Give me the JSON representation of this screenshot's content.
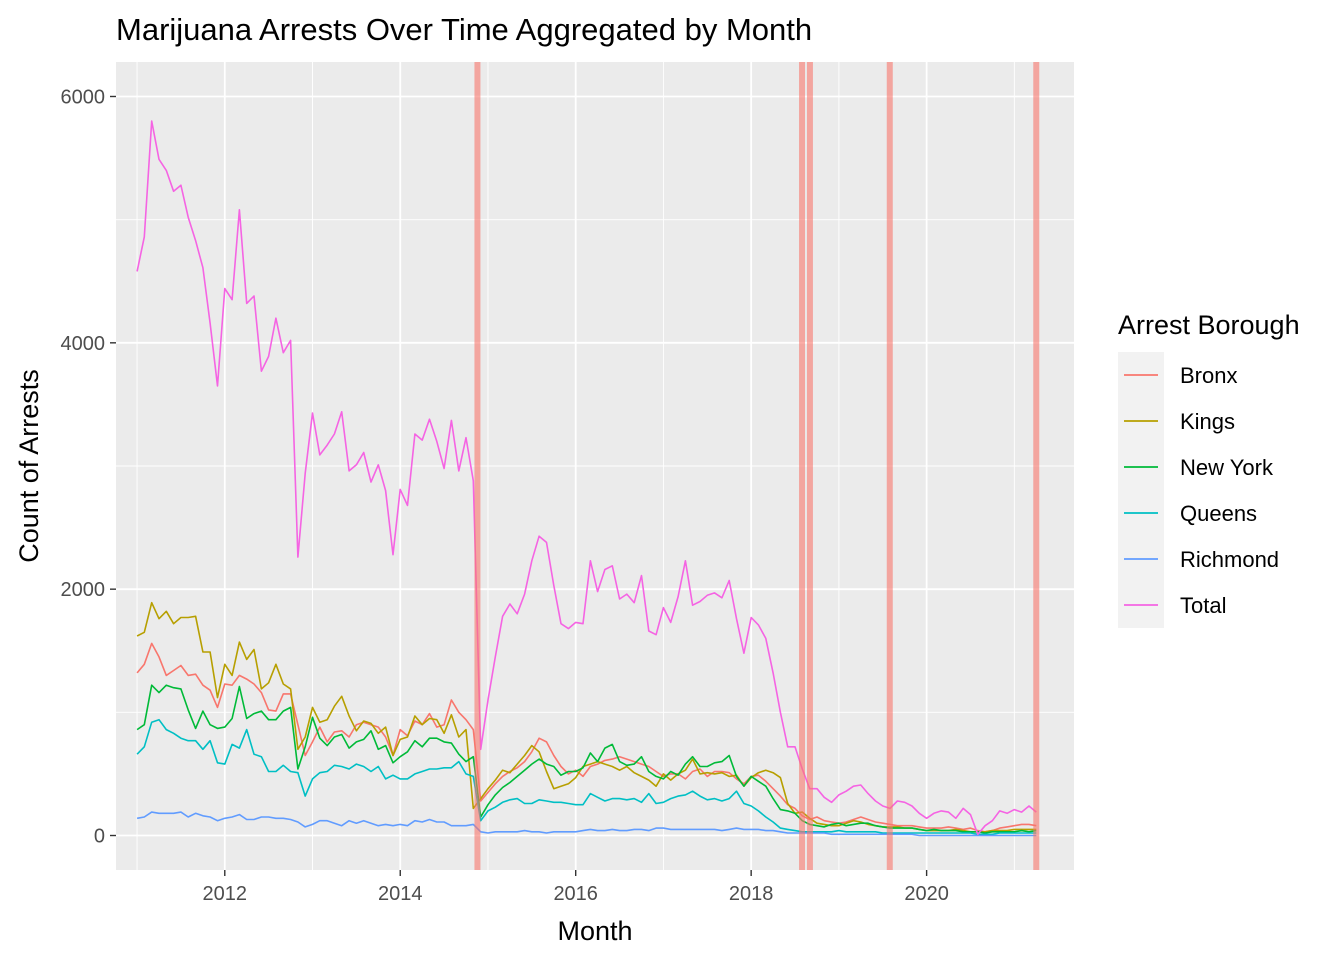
{
  "chart_data": {
    "type": "line",
    "title": "Marijuana Arrests Over Time Aggregated by Month",
    "xlabel": "Month",
    "ylabel": "Count of Arrests",
    "legend_title": "Arrest Borough",
    "legend_position": "right",
    "grid": true,
    "xlim": [
      2010.76,
      2021.68
    ],
    "ylim": [
      -280,
      6280
    ],
    "x_ticks": [
      2012,
      2014,
      2016,
      2018,
      2020
    ],
    "x_tick_labels": [
      "2012",
      "2014",
      "2016",
      "2018",
      "2020"
    ],
    "y_ticks": [
      0,
      2000,
      4000,
      6000
    ],
    "y_tick_labels": [
      "0",
      "2000",
      "4000",
      "6000"
    ],
    "vlines": [
      2014.88,
      2018.58,
      2018.67,
      2019.58,
      2021.25
    ],
    "vline_color": "#F8766D",
    "x": [
      2011.0,
      2011.083,
      2011.167,
      2011.25,
      2011.333,
      2011.417,
      2011.5,
      2011.583,
      2011.667,
      2011.75,
      2011.833,
      2011.917,
      2012.0,
      2012.083,
      2012.167,
      2012.25,
      2012.333,
      2012.417,
      2012.5,
      2012.583,
      2012.667,
      2012.75,
      2012.833,
      2012.917,
      2013.0,
      2013.083,
      2013.167,
      2013.25,
      2013.333,
      2013.417,
      2013.5,
      2013.583,
      2013.667,
      2013.75,
      2013.833,
      2013.917,
      2014.0,
      2014.083,
      2014.167,
      2014.25,
      2014.333,
      2014.417,
      2014.5,
      2014.583,
      2014.667,
      2014.75,
      2014.833,
      2014.917,
      2015.0,
      2015.083,
      2015.167,
      2015.25,
      2015.333,
      2015.417,
      2015.5,
      2015.583,
      2015.667,
      2015.75,
      2015.833,
      2015.917,
      2016.0,
      2016.083,
      2016.167,
      2016.25,
      2016.333,
      2016.417,
      2016.5,
      2016.583,
      2016.667,
      2016.75,
      2016.833,
      2016.917,
      2017.0,
      2017.083,
      2017.167,
      2017.25,
      2017.333,
      2017.417,
      2017.5,
      2017.583,
      2017.667,
      2017.75,
      2017.833,
      2017.917,
      2018.0,
      2018.083,
      2018.167,
      2018.25,
      2018.333,
      2018.417,
      2018.5,
      2018.583,
      2018.667,
      2018.75,
      2018.833,
      2018.917,
      2019.0,
      2019.083,
      2019.167,
      2019.25,
      2019.333,
      2019.417,
      2019.5,
      2019.583,
      2019.667,
      2019.75,
      2019.833,
      2019.917,
      2020.0,
      2020.083,
      2020.167,
      2020.25,
      2020.333,
      2020.417,
      2020.5,
      2020.583,
      2020.667,
      2020.75,
      2020.833,
      2020.917,
      2021.0,
      2021.083,
      2021.167,
      2021.25
    ],
    "series": [
      {
        "name": "Bronx",
        "color": "#F8766D",
        "values": [
          1320,
          1390,
          1560,
          1450,
          1300,
          1340,
          1380,
          1300,
          1310,
          1220,
          1180,
          1040,
          1230,
          1220,
          1300,
          1270,
          1230,
          1160,
          1020,
          1010,
          1150,
          1150,
          900,
          650,
          760,
          880,
          760,
          840,
          850,
          800,
          900,
          920,
          900,
          880,
          800,
          650,
          860,
          810,
          930,
          900,
          990,
          880,
          900,
          1100,
          1000,
          940,
          860,
          280,
          350,
          420,
          480,
          520,
          550,
          600,
          680,
          790,
          760,
          650,
          560,
          500,
          530,
          480,
          560,
          580,
          610,
          620,
          640,
          620,
          600,
          580,
          560,
          520,
          480,
          500,
          500,
          460,
          520,
          540,
          480,
          520,
          520,
          510,
          460,
          420,
          480,
          490,
          440,
          380,
          320,
          250,
          220,
          160,
          130,
          150,
          120,
          110,
          100,
          110,
          130,
          150,
          130,
          110,
          100,
          90,
          80,
          80,
          80,
          70,
          60,
          60,
          60,
          70,
          60,
          50,
          60,
          40,
          30,
          40,
          60,
          70,
          80,
          90,
          90,
          80
        ]
      },
      {
        "name": "Kings",
        "color": "#B79F00",
        "values": [
          1620,
          1650,
          1890,
          1760,
          1820,
          1720,
          1770,
          1770,
          1780,
          1490,
          1490,
          1120,
          1390,
          1300,
          1570,
          1430,
          1510,
          1190,
          1240,
          1390,
          1230,
          1190,
          700,
          800,
          1040,
          920,
          940,
          1050,
          1130,
          970,
          850,
          930,
          910,
          830,
          880,
          650,
          780,
          800,
          970,
          900,
          950,
          940,
          830,
          980,
          800,
          860,
          220,
          300,
          380,
          450,
          530,
          510,
          580,
          650,
          730,
          680,
          520,
          380,
          400,
          420,
          470,
          560,
          580,
          600,
          580,
          560,
          530,
          560,
          510,
          480,
          450,
          400,
          500,
          450,
          500,
          530,
          620,
          500,
          510,
          500,
          510,
          480,
          490,
          400,
          470,
          510,
          530,
          510,
          470,
          260,
          180,
          190,
          140,
          100,
          90,
          80,
          80,
          100,
          120,
          110,
          90,
          80,
          70,
          70,
          70,
          60,
          60,
          50,
          40,
          40,
          40,
          40,
          50,
          40,
          30,
          30,
          30,
          40,
          40,
          40,
          50,
          50,
          50,
          50
        ]
      },
      {
        "name": "New York",
        "color": "#00BA38",
        "values": [
          860,
          900,
          1220,
          1160,
          1220,
          1200,
          1190,
          1020,
          870,
          1010,
          900,
          870,
          880,
          950,
          1210,
          950,
          990,
          1010,
          940,
          940,
          1010,
          1040,
          540,
          720,
          960,
          790,
          730,
          800,
          820,
          710,
          760,
          780,
          850,
          700,
          730,
          590,
          640,
          680,
          770,
          720,
          790,
          790,
          760,
          750,
          660,
          600,
          640,
          150,
          250,
          330,
          390,
          430,
          480,
          530,
          580,
          620,
          580,
          560,
          490,
          520,
          520,
          550,
          670,
          600,
          710,
          740,
          600,
          570,
          580,
          640,
          520,
          480,
          460,
          520,
          490,
          580,
          640,
          560,
          560,
          590,
          600,
          650,
          480,
          400,
          480,
          440,
          400,
          300,
          210,
          200,
          180,
          120,
          90,
          80,
          70,
          90,
          100,
          80,
          90,
          100,
          100,
          80,
          70,
          60,
          60,
          60,
          60,
          50,
          40,
          50,
          40,
          40,
          40,
          30,
          30,
          30,
          20,
          30,
          30,
          30,
          30,
          40,
          30,
          40
        ]
      },
      {
        "name": "Queens",
        "color": "#00BFC4",
        "values": [
          660,
          720,
          920,
          940,
          860,
          830,
          790,
          770,
          770,
          700,
          770,
          590,
          580,
          740,
          710,
          860,
          660,
          640,
          520,
          520,
          570,
          520,
          510,
          320,
          460,
          510,
          520,
          570,
          560,
          540,
          580,
          560,
          520,
          560,
          460,
          490,
          460,
          460,
          500,
          520,
          540,
          540,
          550,
          550,
          600,
          500,
          480,
          120,
          200,
          230,
          270,
          290,
          300,
          260,
          260,
          290,
          280,
          270,
          270,
          260,
          250,
          250,
          340,
          310,
          280,
          300,
          300,
          290,
          300,
          270,
          340,
          260,
          270,
          300,
          320,
          330,
          360,
          320,
          290,
          300,
          280,
          300,
          360,
          260,
          240,
          200,
          150,
          110,
          60,
          50,
          40,
          30,
          30,
          30,
          30,
          30,
          40,
          30,
          30,
          30,
          30,
          30,
          20,
          20,
          20,
          20,
          20,
          20,
          20,
          20,
          20,
          20,
          20,
          20,
          20,
          10,
          10,
          10,
          20,
          20,
          20,
          20,
          20,
          20
        ]
      },
      {
        "name": "Richmond",
        "color": "#619CFF",
        "values": [
          140,
          150,
          190,
          180,
          180,
          180,
          190,
          150,
          180,
          160,
          150,
          120,
          140,
          150,
          170,
          130,
          130,
          150,
          150,
          140,
          140,
          130,
          110,
          70,
          90,
          120,
          120,
          100,
          80,
          120,
          100,
          120,
          100,
          80,
          90,
          80,
          90,
          80,
          120,
          110,
          130,
          110,
          110,
          80,
          80,
          80,
          90,
          30,
          20,
          30,
          30,
          30,
          30,
          40,
          30,
          30,
          20,
          30,
          30,
          30,
          30,
          40,
          50,
          40,
          40,
          50,
          40,
          40,
          50,
          50,
          40,
          60,
          60,
          50,
          50,
          50,
          50,
          50,
          50,
          50,
          40,
          50,
          60,
          50,
          50,
          50,
          40,
          40,
          30,
          20,
          20,
          20,
          20,
          20,
          20,
          10,
          10,
          10,
          10,
          10,
          10,
          10,
          10,
          10,
          10,
          10,
          10,
          0,
          0,
          0,
          0,
          0,
          0,
          0,
          0,
          0,
          0,
          0,
          0,
          0,
          0,
          0,
          0,
          0
        ]
      },
      {
        "name": "Total",
        "color": "#F564E3",
        "values": [
          4580,
          4860,
          5800,
          5490,
          5400,
          5230,
          5280,
          5020,
          4830,
          4610,
          4160,
          3650,
          4440,
          4350,
          5080,
          4320,
          4380,
          3770,
          3890,
          4200,
          3920,
          4020,
          2260,
          2940,
          3430,
          3090,
          3170,
          3260,
          3440,
          2960,
          3010,
          3110,
          2870,
          3010,
          2800,
          2280,
          2810,
          2680,
          3260,
          3210,
          3380,
          3200,
          2980,
          3370,
          2960,
          3230,
          2880,
          700,
          1100,
          1450,
          1780,
          1880,
          1800,
          1960,
          2230,
          2430,
          2380,
          2030,
          1720,
          1680,
          1730,
          1720,
          2230,
          1980,
          2160,
          2190,
          1920,
          1960,
          1890,
          2110,
          1660,
          1630,
          1850,
          1730,
          1940,
          2230,
          1870,
          1900,
          1950,
          1970,
          1930,
          2070,
          1760,
          1480,
          1770,
          1710,
          1600,
          1320,
          1000,
          720,
          720,
          540,
          380,
          380,
          310,
          270,
          330,
          360,
          400,
          410,
          340,
          280,
          240,
          220,
          280,
          270,
          240,
          180,
          140,
          180,
          200,
          190,
          140,
          220,
          170,
          10,
          80,
          120,
          200,
          180,
          210,
          190,
          240,
          190
        ]
      }
    ]
  }
}
